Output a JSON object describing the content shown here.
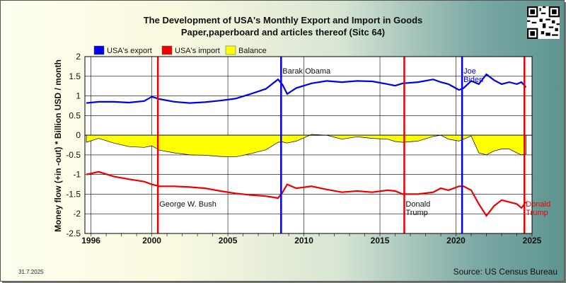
{
  "header": {
    "title_line1": "The Development of USA's Monthly Export and Import in Goods",
    "title_line2": "Paper,paperboard and articles thereof (Sitc 64)"
  },
  "footer": {
    "date": "31.7.2025",
    "source": "Source: US Census Bureau"
  },
  "colors": {
    "export": "#0000ee",
    "import": "#ee0000",
    "balance": "#ffff00",
    "plot_bg": "#ffffff"
  },
  "chart_data": {
    "type": "line",
    "ylabel": "Money flow (+in -out) * Billion USD / month",
    "xlabel": "",
    "xlim": [
      1995.6,
      2025.0
    ],
    "ylim": [
      -2.5,
      2.0
    ],
    "x_ticks": [
      1996,
      2000,
      2005,
      2010,
      2015,
      2020,
      2025
    ],
    "y_ticks": [
      2,
      1.5,
      1,
      0.5,
      0,
      -0.5,
      -1,
      -1.5,
      -2,
      -2.5
    ],
    "grid": true,
    "legend": {
      "position": "top-left",
      "entries": [
        "USA's export",
        "USA's import",
        "Balance"
      ]
    },
    "series": [
      {
        "name": "USA's export",
        "x": [
          1995.7,
          1996.5,
          1997.5,
          1998.5,
          1999.5,
          2000.0,
          2000.5,
          2001.5,
          2002.5,
          2003.5,
          2004.5,
          2005.5,
          2006.5,
          2007.5,
          2008.3,
          2008.6,
          2008.9,
          2009.5,
          2010.5,
          2011.5,
          2012.5,
          2013.5,
          2014.5,
          2015.5,
          2016.0,
          2016.5,
          2017.5,
          2018.5,
          2019.0,
          2019.5,
          2020.2,
          2020.5,
          2021.0,
          2021.5,
          2022.0,
          2022.5,
          2023.0,
          2023.5,
          2024.0,
          2024.3,
          2024.6
        ],
        "values": [
          0.82,
          0.85,
          0.85,
          0.83,
          0.87,
          0.98,
          0.92,
          0.85,
          0.82,
          0.84,
          0.88,
          0.93,
          1.05,
          1.18,
          1.42,
          1.28,
          1.05,
          1.2,
          1.32,
          1.38,
          1.35,
          1.38,
          1.37,
          1.3,
          1.26,
          1.32,
          1.35,
          1.42,
          1.35,
          1.3,
          1.15,
          1.2,
          1.38,
          1.3,
          1.55,
          1.4,
          1.3,
          1.35,
          1.3,
          1.35,
          1.22
        ]
      },
      {
        "name": "USA's import",
        "x": [
          1995.7,
          1996.5,
          1997.5,
          1998.5,
          1999.5,
          2000.0,
          2000.5,
          2001.5,
          2002.5,
          2003.5,
          2004.5,
          2005.5,
          2006.5,
          2007.5,
          2008.3,
          2008.6,
          2008.9,
          2009.5,
          2010.5,
          2011.5,
          2012.5,
          2013.5,
          2014.5,
          2015.5,
          2016.0,
          2016.5,
          2017.5,
          2018.5,
          2019.0,
          2019.5,
          2020.2,
          2020.5,
          2021.0,
          2021.5,
          2022.0,
          2022.5,
          2023.0,
          2023.5,
          2024.0,
          2024.3,
          2024.6
        ],
        "values": [
          -1.0,
          -0.93,
          -1.05,
          -1.12,
          -1.18,
          -1.25,
          -1.3,
          -1.3,
          -1.32,
          -1.35,
          -1.42,
          -1.48,
          -1.52,
          -1.55,
          -1.6,
          -1.45,
          -1.25,
          -1.35,
          -1.3,
          -1.38,
          -1.45,
          -1.42,
          -1.45,
          -1.4,
          -1.42,
          -1.5,
          -1.5,
          -1.45,
          -1.35,
          -1.4,
          -1.3,
          -1.3,
          -1.4,
          -1.75,
          -2.05,
          -1.8,
          -1.65,
          -1.7,
          -1.75,
          -1.85,
          -1.7
        ]
      },
      {
        "name": "Balance",
        "x": [
          1995.7,
          1996.5,
          1997.5,
          1998.5,
          1999.5,
          2000.0,
          2000.5,
          2001.5,
          2002.5,
          2003.5,
          2004.5,
          2005.5,
          2006.5,
          2007.5,
          2008.3,
          2008.6,
          2008.9,
          2009.5,
          2010.5,
          2011.5,
          2012.5,
          2013.5,
          2014.5,
          2015.5,
          2016.0,
          2016.5,
          2017.5,
          2018.5,
          2019.0,
          2019.5,
          2020.2,
          2020.5,
          2021.0,
          2021.5,
          2022.0,
          2022.5,
          2023.0,
          2023.5,
          2024.0,
          2024.3,
          2024.6
        ],
        "values": [
          -0.18,
          -0.08,
          -0.2,
          -0.29,
          -0.31,
          -0.27,
          -0.38,
          -0.45,
          -0.5,
          -0.51,
          -0.54,
          -0.55,
          -0.47,
          -0.37,
          -0.18,
          -0.17,
          -0.2,
          -0.15,
          0.02,
          0.0,
          -0.1,
          -0.04,
          -0.08,
          -0.1,
          -0.16,
          -0.18,
          -0.15,
          -0.03,
          0.0,
          -0.1,
          -0.15,
          -0.1,
          -0.02,
          -0.45,
          -0.5,
          -0.4,
          -0.35,
          -0.35,
          -0.45,
          -0.5,
          -0.48
        ]
      }
    ],
    "events": [
      {
        "year": 2000.4,
        "label": "George W. Bush",
        "color": "#ee0000"
      },
      {
        "year": 2008.5,
        "label": "Barak Obama",
        "color": "#0000ee"
      },
      {
        "year": 2016.6,
        "label": "Donald Trump",
        "color": "#ee0000"
      },
      {
        "year": 2020.4,
        "label": "Joe Biden",
        "color": "#0000ee"
      },
      {
        "year": 2024.5,
        "label": "Donald Trump",
        "color": "#ee0000"
      }
    ]
  }
}
